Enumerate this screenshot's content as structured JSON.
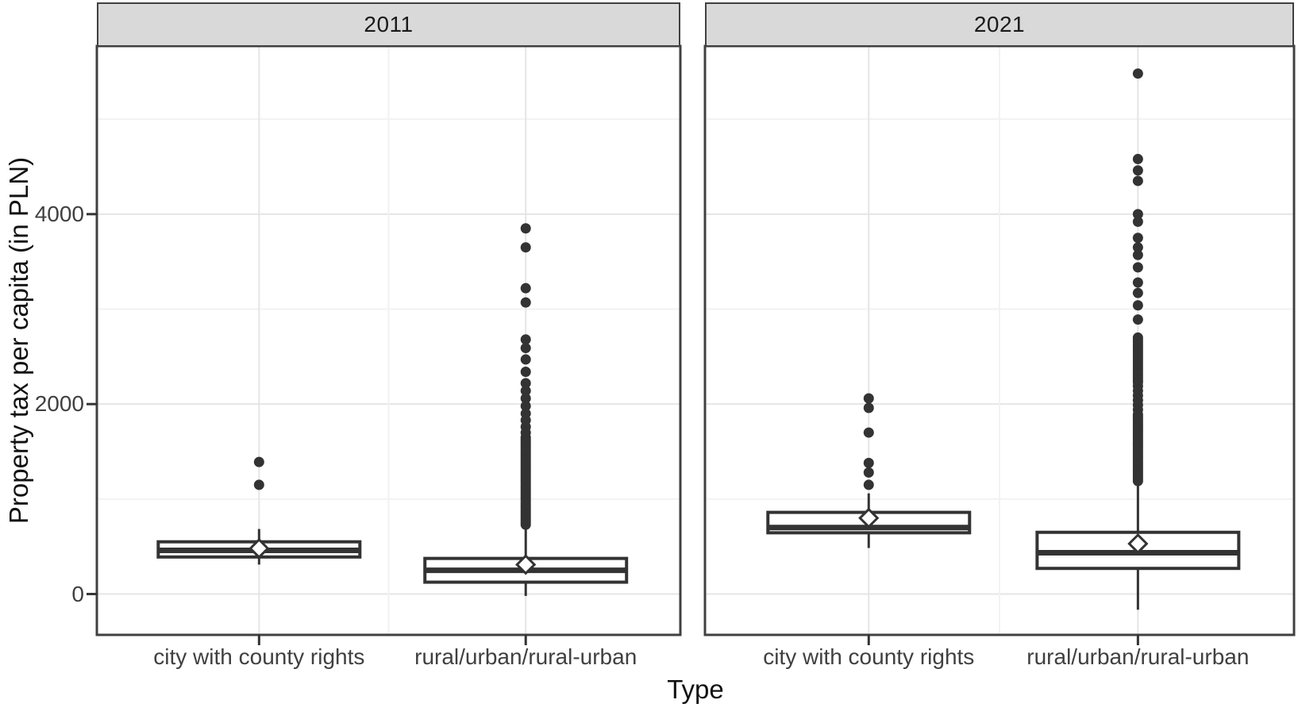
{
  "chart_data": {
    "type": "boxplot",
    "faceted_by": "year",
    "title": "",
    "x_title": "Type",
    "y_title": "Property tax per capita (in PLN)",
    "y_unit": "PLN",
    "y_domain": [
      -430,
      5770
    ],
    "y_ticks": [
      {
        "label": "0",
        "value": 0
      },
      {
        "label": "2000",
        "value": 2000
      },
      {
        "label": "4000",
        "value": 4000
      }
    ],
    "y_minor_gridlines": [
      1000,
      3000,
      5000
    ],
    "grid": "on",
    "legend": "none",
    "categories": [
      "city with county rights",
      "rural/urban/rural-urban"
    ],
    "panels": [
      {
        "title": "2011",
        "boxes": [
          {
            "category": "city with county rights",
            "whisker_low": 310,
            "q1": 390,
            "median": 460,
            "q3": 550,
            "whisker_high": 685,
            "mean": 480,
            "outliers": [
              1150,
              1390
            ]
          },
          {
            "category": "rural/urban/rural-urban",
            "whisker_low": -20,
            "q1": 125,
            "median": 250,
            "q3": 375,
            "whisker_high": 735,
            "mean": 310,
            "outliers": [
              3850,
              3650,
              3220,
              3070,
              2680,
              2590,
              2470,
              2340,
              2220,
              2140,
              2060,
              1980,
              1900,
              1830,
              1760,
              1700,
              1650,
              1630,
              1610,
              1590,
              1570,
              1550,
              1530,
              1510,
              1490,
              1470,
              1450,
              1430,
              1410,
              1390,
              1370,
              1350,
              1330,
              1310,
              1290,
              1270,
              1250,
              1230,
              1210,
              1190,
              1170,
              1150,
              1130,
              1110,
              1090,
              1070,
              1050,
              1030,
              1010,
              990,
              970,
              950,
              930,
              910,
              890,
              870,
              850,
              830,
              810,
              790,
              770,
              750,
              730
            ]
          }
        ]
      },
      {
        "title": "2021",
        "boxes": [
          {
            "category": "city with county rights",
            "whisker_low": 485,
            "q1": 645,
            "median": 700,
            "q3": 860,
            "whisker_high": 1060,
            "mean": 800,
            "outliers": [
              1150,
              1280,
              1380,
              1700,
              1960,
              2060
            ]
          },
          {
            "category": "rural/urban/rural-urban",
            "whisker_low": -165,
            "q1": 270,
            "median": 435,
            "q3": 650,
            "whisker_high": 1170,
            "mean": 530,
            "outliers": [
              5480,
              4580,
              4460,
              4350,
              4000,
              3920,
              3750,
              3650,
              3570,
              3440,
              3280,
              3170,
              3040,
              2890,
              2700,
              2675,
              2650,
              2625,
              2600,
              2575,
              2550,
              2525,
              2500,
              2475,
              2450,
              2425,
              2400,
              2375,
              2350,
              2325,
              2300,
              2275,
              2250,
              2230,
              2190,
              2140,
              2090,
              2040,
              1990,
              1940,
              1890,
              1870,
              1850,
              1830,
              1810,
              1790,
              1770,
              1750,
              1730,
              1710,
              1690,
              1670,
              1650,
              1630,
              1610,
              1590,
              1570,
              1550,
              1530,
              1510,
              1490,
              1470,
              1450,
              1430,
              1410,
              1390,
              1370,
              1350,
              1330,
              1310,
              1290,
              1270,
              1250,
              1230,
              1210,
              1190
            ]
          }
        ]
      }
    ],
    "style": {
      "panel_bg": "#ffffff",
      "strip_bg": "#d9d9d9",
      "panel_border": "#404040",
      "grid_major": "#e5e5e5",
      "grid_minor": "#f2f2f2",
      "box_stroke": "#333333",
      "median_stroke": "#333333",
      "outlier_fill": "#333333",
      "mean_marker": "diamond",
      "mean_fill": "#ffffff",
      "tick_color": "#333333",
      "text_color": "#404040"
    }
  }
}
